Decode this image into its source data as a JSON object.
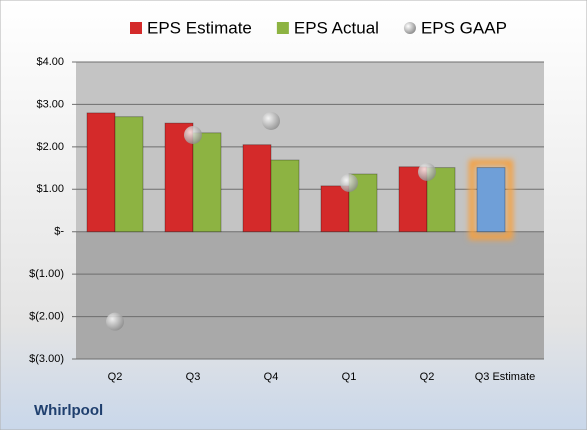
{
  "chart_data": {
    "type": "bar",
    "title": "Whirlpool",
    "categories": [
      "Q2",
      "Q3",
      "Q4",
      "Q1",
      "Q2",
      "Q3 Estimate"
    ],
    "series": [
      {
        "name": "EPS Estimate",
        "color": "#d42a2a",
        "colors": [
          "#d42a2a",
          "#d42a2a",
          "#d42a2a",
          "#d42a2a",
          "#d42a2a",
          "#6f9fd8"
        ],
        "values": [
          2.8,
          2.56,
          2.05,
          1.08,
          1.53,
          1.51
        ]
      },
      {
        "name": "EPS Actual",
        "color": "#8db342",
        "values": [
          2.71,
          2.33,
          1.69,
          1.36,
          1.51,
          null
        ]
      },
      {
        "name": "EPS GAAP",
        "color": "#a8a8a8",
        "marker": "circle",
        "values": [
          -2.12,
          2.28,
          2.61,
          1.15,
          1.41,
          null
        ]
      }
    ],
    "ylim": [
      -3,
      4
    ],
    "yticks": [
      {
        "value": -3,
        "label": "$(3.00)"
      },
      {
        "value": -2,
        "label": "$(2.00)"
      },
      {
        "value": -1,
        "label": "$(1.00)"
      },
      {
        "value": 0,
        "label": "$-"
      },
      {
        "value": 1,
        "label": "$1.00"
      },
      {
        "value": 2,
        "label": "$2.00"
      },
      {
        "value": 3,
        "label": "$3.00"
      },
      {
        "value": 4,
        "label": "$4.00"
      }
    ],
    "grid": true,
    "legend": "top"
  }
}
